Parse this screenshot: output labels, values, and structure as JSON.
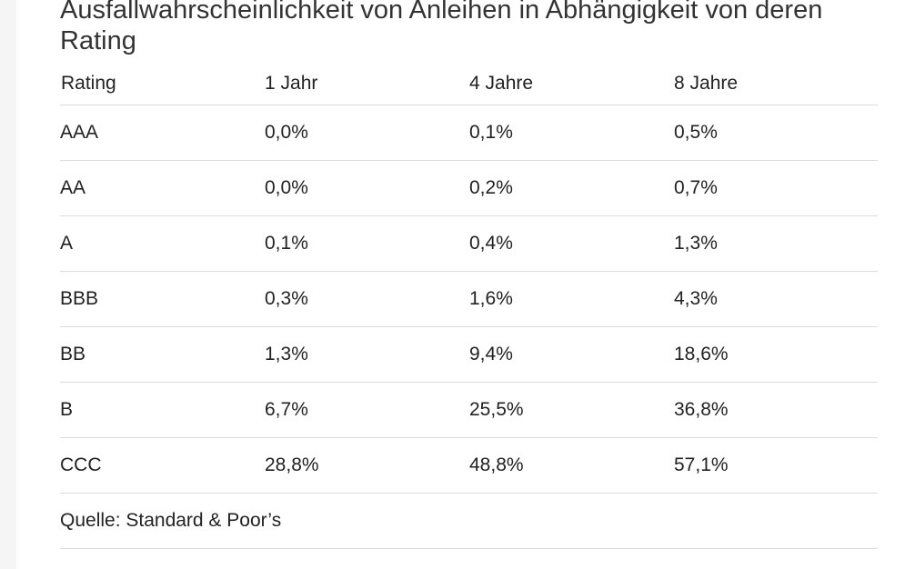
{
  "title": "Ausfallwahrscheinlichkeit von Anleihen in Abhängigkeit von deren Rating",
  "table": {
    "headers": [
      "Rating",
      "1 Jahr",
      "4 Jahre",
      "8 Jahre"
    ],
    "rows": [
      [
        "AAA",
        "0,0%",
        "0,1%",
        "0,5%"
      ],
      [
        "AA",
        "0,0%",
        "0,2%",
        "0,7%"
      ],
      [
        "A",
        "0,1%",
        "0,4%",
        "1,3%"
      ],
      [
        "BBB",
        "0,3%",
        "1,6%",
        "4,3%"
      ],
      [
        "BB",
        "1,3%",
        "9,4%",
        "18,6%"
      ],
      [
        "B",
        "6,7%",
        "25,5%",
        "36,8%"
      ],
      [
        "CCC",
        "28,8%",
        "48,8%",
        "57,1%"
      ]
    ],
    "source": "Quelle: Standard & Poor’s"
  }
}
